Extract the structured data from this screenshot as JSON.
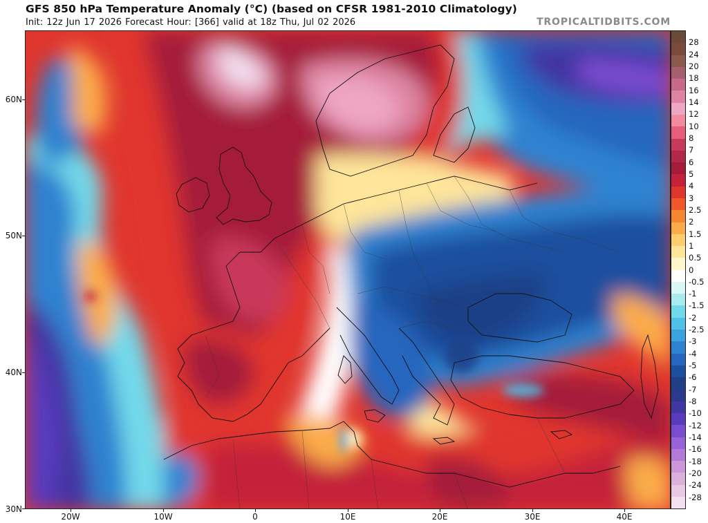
{
  "header": {
    "title": "GFS 850 hPa Temperature Anomaly (°C) (based on CFSR 1981-2010 Climatology)",
    "subtitle": "Init: 12z Jun 17 2026   Forecast Hour: [366]   valid at 18z Thu, Jul 02 2026",
    "site": "TROPICALTIDBITS.COM"
  },
  "map": {
    "lat_labels": [
      {
        "value": 60,
        "text": "60N"
      },
      {
        "value": 50,
        "text": "50N"
      },
      {
        "value": 40,
        "text": "40N"
      },
      {
        "value": 30,
        "text": "30N"
      }
    ],
    "lon_labels": [
      {
        "value": -20,
        "text": "20W"
      },
      {
        "value": -10,
        "text": "10W"
      },
      {
        "value": 0,
        "text": "0"
      },
      {
        "value": 10,
        "text": "10E"
      },
      {
        "value": 20,
        "text": "20E"
      },
      {
        "value": 30,
        "text": "30E"
      },
      {
        "value": 40,
        "text": "40E"
      }
    ]
  },
  "colorbar": {
    "unit": "°C",
    "levels": [
      {
        "label": "28",
        "color": "#7a4a3a"
      },
      {
        "label": "24",
        "color": "#8c5a4c"
      },
      {
        "label": "20",
        "color": "#a55f6e"
      },
      {
        "label": "18",
        "color": "#c8688a"
      },
      {
        "label": "16",
        "color": "#dd84a3"
      },
      {
        "label": "14",
        "color": "#eea6c2"
      },
      {
        "label": "12",
        "color": "#f28aa0"
      },
      {
        "label": "10",
        "color": "#e75d7a"
      },
      {
        "label": "8",
        "color": "#c9395a"
      },
      {
        "label": "7",
        "color": "#b32848"
      },
      {
        "label": "6",
        "color": "#a51c3a"
      },
      {
        "label": "5",
        "color": "#c4223a"
      },
      {
        "label": "4",
        "color": "#e0362e"
      },
      {
        "label": "3",
        "color": "#f0582a"
      },
      {
        "label": "2.5",
        "color": "#f7872f"
      },
      {
        "label": "2",
        "color": "#fbac48"
      },
      {
        "label": "1.5",
        "color": "#fdcd70"
      },
      {
        "label": "1",
        "color": "#fee59a"
      },
      {
        "label": "0.5",
        "color": "#fff6cc"
      },
      {
        "label": "0",
        "color": "#ffffff"
      },
      {
        "label": "-0.5",
        "color": "#d9f7f6"
      },
      {
        "label": "-1",
        "color": "#a8ecef"
      },
      {
        "label": "-1.5",
        "color": "#72d9ea"
      },
      {
        "label": "-2",
        "color": "#4fc1e8"
      },
      {
        "label": "-2.5",
        "color": "#3ba2de"
      },
      {
        "label": "-3",
        "color": "#2f82d0"
      },
      {
        "label": "-4",
        "color": "#2566be"
      },
      {
        "label": "-5",
        "color": "#1d4f9f"
      },
      {
        "label": "-6",
        "color": "#1f4087"
      },
      {
        "label": "-7",
        "color": "#2c3a8e"
      },
      {
        "label": "-8",
        "color": "#4236a3"
      },
      {
        "label": "-10",
        "color": "#5a3bbd"
      },
      {
        "label": "-12",
        "color": "#7a4cd0"
      },
      {
        "label": "-14",
        "color": "#9a62d8"
      },
      {
        "label": "-16",
        "color": "#b37ad8"
      },
      {
        "label": "-18",
        "color": "#cc96d8"
      },
      {
        "label": "-20",
        "color": "#dcb0dc"
      },
      {
        "label": "-24",
        "color": "#e8c8e4"
      },
      {
        "label": "-28",
        "color": "#f2dff0"
      }
    ]
  }
}
